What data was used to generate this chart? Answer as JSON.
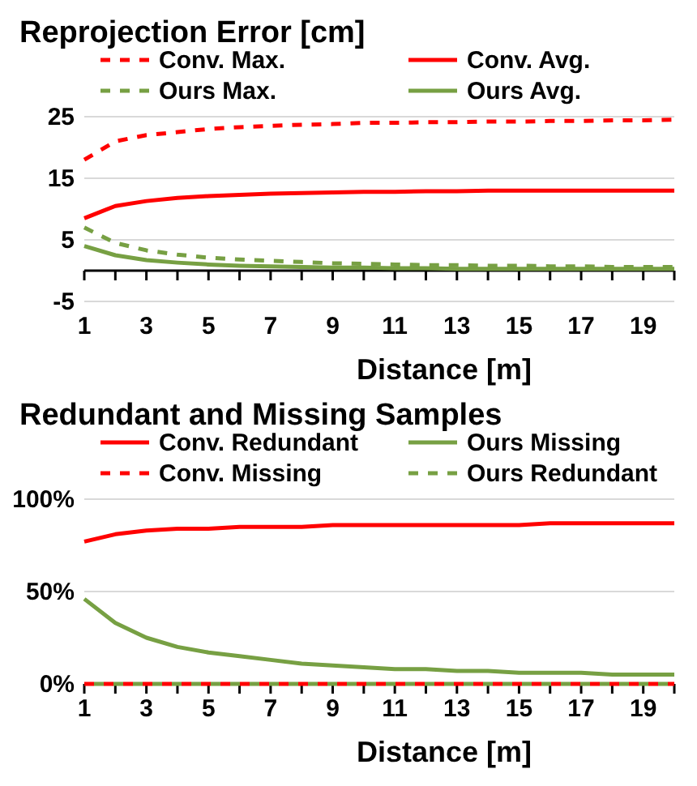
{
  "chart_data": [
    {
      "type": "line",
      "title": "Reprojection Error [cm]",
      "xlabel": "Distance [m]",
      "x": [
        1,
        2,
        3,
        4,
        5,
        6,
        7,
        8,
        9,
        10,
        11,
        12,
        13,
        14,
        15,
        16,
        17,
        18,
        19,
        20
      ],
      "xlim": [
        1,
        20
      ],
      "xticks": [
        1,
        {
          "value": 2,
          "label": null
        },
        3,
        {
          "value": 4,
          "label": null
        },
        5,
        {
          "value": 6,
          "label": null
        },
        7,
        {
          "value": 8,
          "label": null
        },
        9,
        {
          "value": 10,
          "label": null
        },
        11,
        {
          "value": 12,
          "label": null
        },
        13,
        {
          "value": 14,
          "label": null
        },
        15,
        {
          "value": 16,
          "label": null
        },
        17,
        {
          "value": 18,
          "label": null
        },
        19,
        {
          "value": 20,
          "label": null
        }
      ],
      "ylim": [
        -5,
        25
      ],
      "yticks": [
        -5,
        5,
        15,
        25
      ],
      "grid": "y",
      "legend": "top",
      "series": [
        {
          "name": "Conv. Max.",
          "color": "#ff0000",
          "line_style": "dashed",
          "values": [
            18,
            21,
            22,
            22.5,
            23,
            23.3,
            23.5,
            23.7,
            23.8,
            24,
            24,
            24.1,
            24.1,
            24.2,
            24.2,
            24.3,
            24.3,
            24.4,
            24.4,
            24.5
          ]
        },
        {
          "name": "Conv. Avg.",
          "color": "#ff0000",
          "line_style": "solid",
          "values": [
            8.5,
            10.5,
            11.3,
            11.8,
            12.1,
            12.3,
            12.5,
            12.6,
            12.7,
            12.8,
            12.8,
            12.9,
            12.9,
            13,
            13,
            13,
            13,
            13,
            13,
            13
          ]
        },
        {
          "name": "Ours Max.",
          "color": "#77a043",
          "line_style": "dashed",
          "values": [
            7,
            4.5,
            3.3,
            2.6,
            2.1,
            1.8,
            1.6,
            1.4,
            1.2,
            1.1,
            1,
            0.9,
            0.9,
            0.8,
            0.8,
            0.7,
            0.7,
            0.6,
            0.6,
            0.6
          ]
        },
        {
          "name": "Ours Avg.",
          "color": "#77a043",
          "line_style": "solid",
          "values": [
            4,
            2.5,
            1.7,
            1.3,
            1,
            0.8,
            0.7,
            0.6,
            0.5,
            0.5,
            0.4,
            0.4,
            0.3,
            0.3,
            0.3,
            0.3,
            0.3,
            0.3,
            0.3,
            0.3
          ]
        }
      ]
    },
    {
      "type": "line",
      "title": "Redundant and Missing Samples",
      "xlabel": "Distance [m]",
      "x": [
        1,
        2,
        3,
        4,
        5,
        6,
        7,
        8,
        9,
        10,
        11,
        12,
        13,
        14,
        15,
        16,
        17,
        18,
        19,
        20
      ],
      "xlim": [
        1,
        20
      ],
      "xticks": [
        1,
        {
          "value": 2,
          "label": null
        },
        3,
        {
          "value": 4,
          "label": null
        },
        5,
        {
          "value": 6,
          "label": null
        },
        7,
        {
          "value": 8,
          "label": null
        },
        9,
        {
          "value": 10,
          "label": null
        },
        11,
        {
          "value": 12,
          "label": null
        },
        13,
        {
          "value": 14,
          "label": null
        },
        15,
        {
          "value": 16,
          "label": null
        },
        17,
        {
          "value": 18,
          "label": null
        },
        19,
        {
          "value": 20,
          "label": null
        }
      ],
      "ylim": [
        0,
        100
      ],
      "yticks": [
        {
          "value": 0,
          "label": "0%"
        },
        {
          "value": 50,
          "label": "50%"
        },
        {
          "value": 100,
          "label": "100%"
        }
      ],
      "grid": "y",
      "legend": "top",
      "series": [
        {
          "name": "Conv. Redundant",
          "color": "#ff0000",
          "line_style": "solid",
          "values": [
            77,
            81,
            83,
            84,
            84,
            85,
            85,
            85,
            86,
            86,
            86,
            86,
            86,
            86,
            86,
            87,
            87,
            87,
            87,
            87
          ]
        },
        {
          "name": "Ours Missing",
          "color": "#77a043",
          "line_style": "solid",
          "values": [
            46,
            33,
            25,
            20,
            17,
            15,
            13,
            11,
            10,
            9,
            8,
            8,
            7,
            7,
            6,
            6,
            6,
            5,
            5,
            5
          ]
        },
        {
          "name": "Conv. Missing",
          "color": "#ff0000",
          "line_style": "dashed",
          "values": [
            0,
            0,
            0,
            0,
            0,
            0,
            0,
            0,
            0,
            0,
            0,
            0,
            0,
            0,
            0,
            0,
            0,
            0,
            0,
            0
          ]
        },
        {
          "name": "Ours Redundant",
          "color": "#77a043",
          "line_style": "dashed",
          "values": [
            0,
            0,
            0,
            0,
            0,
            0,
            0,
            0,
            0,
            0,
            0,
            0,
            0,
            0,
            0,
            0,
            0,
            0,
            0,
            0
          ]
        }
      ]
    }
  ]
}
